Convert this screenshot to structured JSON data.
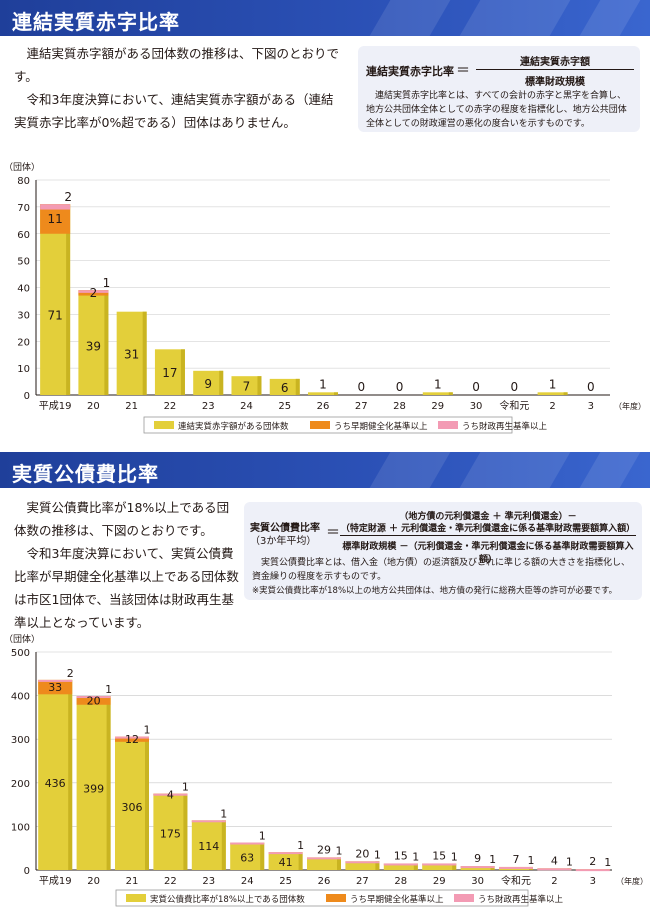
{
  "colors": {
    "header_blue": "#2445a8",
    "bar_yellow": "#e3cf3a",
    "bar_orange": "#ee8a1c",
    "bar_pink": "#f39bb4",
    "box_bg": "#eef0f8"
  },
  "section1": {
    "title": "連結実質赤字比率",
    "intro": [
      "連結実質赤字額がある団体数の推移は、下図のとおりです。",
      "令和3年度決算において、連結実質赤字額がある（連結実質赤字比率が0%超である）団体はありません。"
    ],
    "formula": {
      "label": "連結実質赤字比率",
      "eq": "＝",
      "numerator": "連結実質赤字額",
      "denominator": "標準財政規模",
      "note": "連結実質赤字比率とは、すべての会計の赤字と黒字を合算し、地方公共団体全体としての赤字の程度を指標化し、地方公共団体全体としての財政運営の悪化の度合いを示すものです。"
    }
  },
  "section2": {
    "title": "実質公債費比率",
    "intro": [
      "実質公債費比率が18%以上である団体数の推移は、下図のとおりです。",
      "令和3年度決算において、実質公債費比率が早期健全化基準以上である団体数は市区1団体で、当該団体は財政再生基準以上となっています。"
    ],
    "formula": {
      "label": "実質公債費比率",
      "label_sub": "（3か年平均）",
      "eq": "＝",
      "numerator_1": "（地方債の元利償還金 ＋ 準元利償還金）－",
      "numerator_2": "（特定財源 ＋ 元利償還金・準元利償還金に係る基準財政需要額算入額）",
      "denominator": "標準財政規模 －（元利償還金・準元利償還金に係る基準財政需要額算入額）",
      "note": "実質公債費比率とは、借入金（地方債）の返済額及びこれに準じる額の大きさを指標化し、資金繰りの程度を示すものです。",
      "footnote": "※実質公債費比率が18%以上の地方公共団体は、地方債の発行に総務大臣等の許可が必要です。"
    }
  },
  "chart_data": [
    {
      "type": "bar",
      "stacked": true,
      "categories": [
        "平成19",
        "20",
        "21",
        "22",
        "23",
        "24",
        "25",
        "26",
        "27",
        "28",
        "29",
        "30",
        "令和元",
        "2",
        "3"
      ],
      "x_unit": "（年度）",
      "y_unit": "（団体）",
      "ylim": [
        0,
        80
      ],
      "yticks": [
        0,
        10,
        20,
        30,
        40,
        50,
        60,
        70,
        80
      ],
      "series": [
        {
          "name": "連結実質赤字額がある団体数",
          "color": "#e3cf3a",
          "values": [
            71,
            39,
            31,
            17,
            9,
            7,
            6,
            1,
            0,
            0,
            1,
            0,
            0,
            1,
            0
          ]
        },
        {
          "name": "うち早期健全化基準以上",
          "color": "#ee8a1c",
          "values": [
            11,
            2,
            0,
            0,
            0,
            0,
            0,
            0,
            0,
            0,
            0,
            0,
            0,
            0,
            0
          ]
        },
        {
          "name": "うち財政再生基準以上",
          "color": "#f39bb4",
          "values": [
            2,
            1,
            0,
            0,
            0,
            0,
            0,
            0,
            0,
            0,
            0,
            0,
            0,
            0,
            0
          ]
        }
      ],
      "grid": true,
      "legend": "bottom"
    },
    {
      "type": "bar",
      "stacked": true,
      "categories": [
        "平成19",
        "20",
        "21",
        "22",
        "23",
        "24",
        "25",
        "26",
        "27",
        "28",
        "29",
        "30",
        "令和元",
        "2",
        "3"
      ],
      "x_unit": "（年度）",
      "y_unit": "（団体）",
      "ylim": [
        0,
        500
      ],
      "yticks": [
        0,
        100,
        200,
        300,
        400,
        500
      ],
      "series": [
        {
          "name": "実質公債費比率が18%以上である団体数",
          "color": "#e3cf3a",
          "values": [
            436,
            399,
            306,
            175,
            114,
            63,
            41,
            29,
            20,
            15,
            15,
            9,
            7,
            4,
            2
          ]
        },
        {
          "name": "うち早期健全化基準以上",
          "color": "#ee8a1c",
          "values": [
            33,
            20,
            12,
            4,
            0,
            0,
            0,
            0,
            0,
            0,
            0,
            0,
            0,
            0,
            0
          ]
        },
        {
          "name": "うち財政再生基準以上",
          "color": "#f39bb4",
          "values": [
            2,
            1,
            1,
            1,
            1,
            1,
            1,
            1,
            1,
            1,
            1,
            1,
            1,
            1,
            1
          ]
        }
      ],
      "grid": true,
      "legend": "bottom"
    }
  ]
}
